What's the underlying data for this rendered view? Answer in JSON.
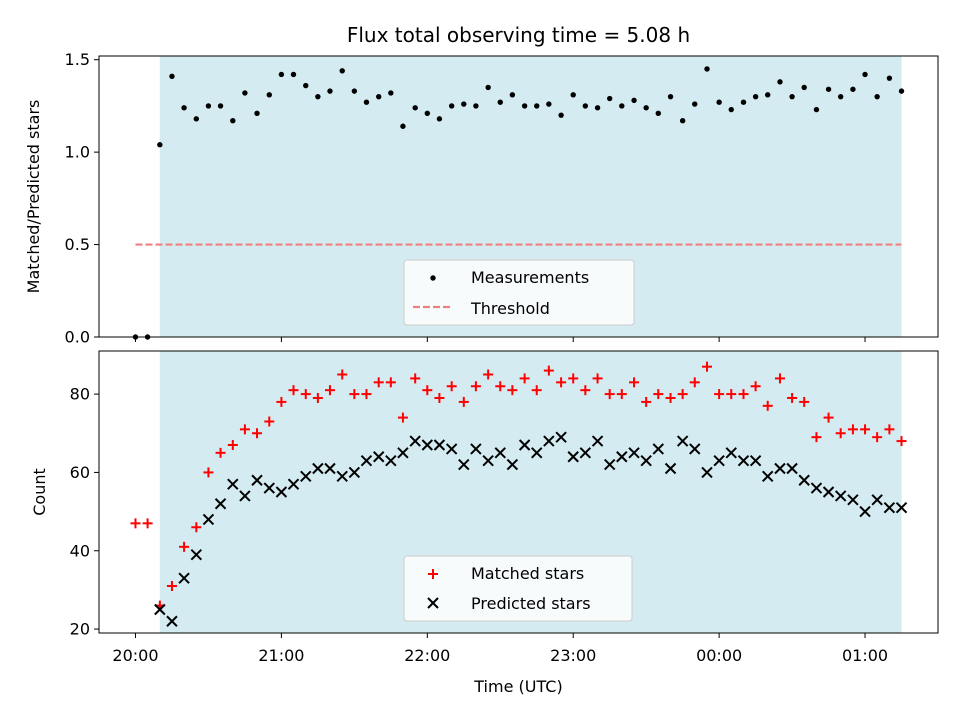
{
  "chart_data": [
    {
      "type": "scatter",
      "title": "Flux total observing time = 5.08 h",
      "xlabel": "",
      "ylabel": "Matched/Predicted stars",
      "ylim": [
        0,
        1.52
      ],
      "yticks": [
        0.0,
        0.5,
        1.0,
        1.5
      ],
      "ytick_labels": [
        "0.0",
        "0.5",
        "1.0",
        "1.5"
      ],
      "legend_position": "lower-center",
      "shaded_interval": {
        "start_hours": 20.167,
        "end_hours": 25.25,
        "color": "#d4ebf1"
      },
      "series": [
        {
          "name": "Measurements",
          "marker": "dot",
          "color": "#000000",
          "x": [
            20.0,
            20.083,
            20.167,
            20.25,
            20.333,
            20.417,
            20.5,
            20.583,
            20.667,
            20.75,
            20.833,
            20.917,
            21.0,
            21.083,
            21.167,
            21.25,
            21.333,
            21.417,
            21.5,
            21.583,
            21.667,
            21.75,
            21.833,
            21.917,
            22.0,
            22.083,
            22.167,
            22.25,
            22.333,
            22.417,
            22.5,
            22.583,
            22.667,
            22.75,
            22.833,
            22.917,
            23.0,
            23.083,
            23.167,
            23.25,
            23.333,
            23.417,
            23.5,
            23.583,
            23.667,
            23.75,
            23.833,
            23.917,
            24.0,
            24.083,
            24.167,
            24.25,
            24.333,
            24.417,
            24.5,
            24.583,
            24.667,
            24.75,
            24.833,
            24.917,
            25.0,
            25.083,
            25.167,
            25.25
          ],
          "y": [
            0.0,
            0.0,
            1.04,
            1.41,
            1.24,
            1.18,
            1.25,
            1.25,
            1.17,
            1.32,
            1.21,
            1.31,
            1.42,
            1.42,
            1.36,
            1.3,
            1.33,
            1.44,
            1.33,
            1.27,
            1.3,
            1.32,
            1.14,
            1.24,
            1.21,
            1.18,
            1.25,
            1.26,
            1.25,
            1.35,
            1.27,
            1.31,
            1.25,
            1.25,
            1.26,
            1.2,
            1.31,
            1.25,
            1.24,
            1.29,
            1.25,
            1.28,
            1.24,
            1.21,
            1.3,
            1.17,
            1.26,
            1.45,
            1.27,
            1.23,
            1.27,
            1.3,
            1.31,
            1.38,
            1.3,
            1.35,
            1.23,
            1.34,
            1.3,
            1.34,
            1.42,
            1.3,
            1.4,
            1.33
          ]
        },
        {
          "name": "Threshold",
          "marker": "dashed-line",
          "color": "#f08080",
          "x": [
            20.0,
            25.25
          ],
          "y": [
            0.5,
            0.5
          ]
        }
      ]
    },
    {
      "type": "scatter",
      "title": "",
      "xlabel": "Time (UTC)",
      "ylabel": "Count",
      "xlim_hours": [
        19.75,
        25.5
      ],
      "ylim": [
        19,
        91
      ],
      "yticks": [
        20,
        40,
        60,
        80
      ],
      "ytick_labels": [
        "20",
        "40",
        "60",
        "80"
      ],
      "xticks_hours": [
        20,
        21,
        22,
        23,
        24,
        25
      ],
      "xtick_labels": [
        "20:00",
        "21:00",
        "22:00",
        "23:00",
        "00:00",
        "01:00"
      ],
      "legend_position": "lower-center",
      "shaded_interval": {
        "start_hours": 20.167,
        "end_hours": 25.25,
        "color": "#d4ebf1"
      },
      "series": [
        {
          "name": "Matched stars",
          "marker": "plus",
          "color": "#ff0000",
          "x": [
            20.0,
            20.083,
            20.167,
            20.25,
            20.333,
            20.417,
            20.5,
            20.583,
            20.667,
            20.75,
            20.833,
            20.917,
            21.0,
            21.083,
            21.167,
            21.25,
            21.333,
            21.417,
            21.5,
            21.583,
            21.667,
            21.75,
            21.833,
            21.917,
            22.0,
            22.083,
            22.167,
            22.25,
            22.333,
            22.417,
            22.5,
            22.583,
            22.667,
            22.75,
            22.833,
            22.917,
            23.0,
            23.083,
            23.167,
            23.25,
            23.333,
            23.417,
            23.5,
            23.583,
            23.667,
            23.75,
            23.833,
            23.917,
            24.0,
            24.083,
            24.167,
            24.25,
            24.333,
            24.417,
            24.5,
            24.583,
            24.667,
            24.75,
            24.833,
            24.917,
            25.0,
            25.083,
            25.167,
            25.25
          ],
          "y": [
            47,
            47,
            26,
            31,
            41,
            46,
            60,
            65,
            67,
            71,
            70,
            73,
            78,
            81,
            80,
            79,
            81,
            85,
            80,
            80,
            83,
            83,
            74,
            84,
            81,
            79,
            82,
            78,
            82,
            85,
            82,
            81,
            84,
            81,
            86,
            83,
            84,
            81,
            84,
            80,
            80,
            83,
            78,
            80,
            79,
            80,
            83,
            87,
            80,
            80,
            80,
            82,
            77,
            84,
            79,
            78,
            69,
            74,
            70,
            71,
            71,
            69,
            71,
            68
          ]
        },
        {
          "name": "Predicted stars",
          "marker": "x",
          "color": "#000000",
          "x": [
            20.167,
            20.25,
            20.333,
            20.417,
            20.5,
            20.583,
            20.667,
            20.75,
            20.833,
            20.917,
            21.0,
            21.083,
            21.167,
            21.25,
            21.333,
            21.417,
            21.5,
            21.583,
            21.667,
            21.75,
            21.833,
            21.917,
            22.0,
            22.083,
            22.167,
            22.25,
            22.333,
            22.417,
            22.5,
            22.583,
            22.667,
            22.75,
            22.833,
            22.917,
            23.0,
            23.083,
            23.167,
            23.25,
            23.333,
            23.417,
            23.5,
            23.583,
            23.667,
            23.75,
            23.833,
            23.917,
            24.0,
            24.083,
            24.167,
            24.25,
            24.333,
            24.417,
            24.5,
            24.583,
            24.667,
            24.75,
            24.833,
            24.917,
            25.0,
            25.083,
            25.167,
            25.25
          ],
          "y": [
            25,
            22,
            33,
            39,
            48,
            52,
            57,
            54,
            58,
            56,
            55,
            57,
            59,
            61,
            61,
            59,
            60,
            63,
            64,
            63,
            65,
            68,
            67,
            67,
            66,
            62,
            66,
            63,
            65,
            62,
            67,
            65,
            68,
            69,
            64,
            65,
            68,
            62,
            64,
            65,
            63,
            66,
            61,
            68,
            66,
            60,
            63,
            65,
            63,
            63,
            59,
            61,
            61,
            58,
            56,
            55,
            54,
            53,
            50,
            53,
            51,
            51
          ]
        }
      ]
    }
  ]
}
